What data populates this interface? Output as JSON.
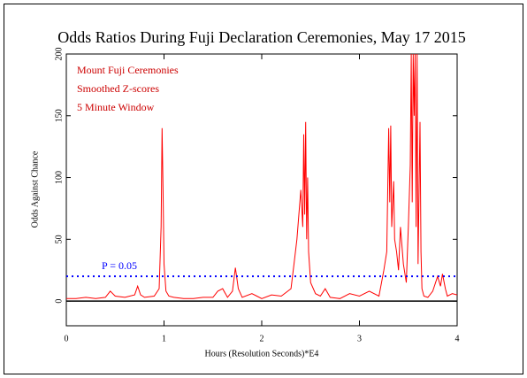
{
  "chart_data": {
    "type": "line",
    "title": "Odds Ratios During Fuji Declaration Ceremonies, May 17 2015",
    "xlabel": "Hours (Resolution Seconds)*E4",
    "ylabel": "Odds Against Chance",
    "annotations": [
      "Mount Fuji Ceremonies",
      "Smoothed Z-scores",
      "5 Minute Window"
    ],
    "annotation_color": "#cc0000",
    "reference_line": {
      "value": 20,
      "label": "P = 0.05",
      "color": "#0000ff"
    },
    "xlim": [
      0,
      4
    ],
    "xticks": [
      0,
      1,
      2,
      3,
      4
    ],
    "ylim": [
      -20,
      200
    ],
    "yticks": [
      0,
      50,
      100,
      150,
      200
    ],
    "series": [
      {
        "name": "Mount Fuji Ceremonies",
        "color": "#ff0000",
        "x": [
          0,
          0.1,
          0.2,
          0.3,
          0.4,
          0.45,
          0.5,
          0.6,
          0.7,
          0.73,
          0.76,
          0.8,
          0.9,
          0.95,
          0.97,
          0.98,
          0.99,
          1.0,
          1.02,
          1.05,
          1.1,
          1.2,
          1.3,
          1.4,
          1.5,
          1.55,
          1.6,
          1.65,
          1.7,
          1.73,
          1.76,
          1.8,
          1.9,
          1.95,
          2.0,
          2.1,
          2.2,
          2.3,
          2.33,
          2.36,
          2.4,
          2.42,
          2.43,
          2.44,
          2.45,
          2.46,
          2.47,
          2.48,
          2.5,
          2.55,
          2.6,
          2.65,
          2.7,
          2.8,
          2.9,
          3.0,
          3.1,
          3.2,
          3.25,
          3.28,
          3.3,
          3.31,
          3.32,
          3.33,
          3.35,
          3.36,
          3.38,
          3.4,
          3.42,
          3.45,
          3.48,
          3.5,
          3.52,
          3.53,
          3.54,
          3.55,
          3.56,
          3.57,
          3.58,
          3.59,
          3.6,
          3.62,
          3.63,
          3.64,
          3.66,
          3.7,
          3.75,
          3.8,
          3.83,
          3.85,
          3.88,
          3.9,
          3.95,
          4.0
        ],
        "values": [
          2,
          2,
          3,
          2,
          3,
          8,
          4,
          3,
          5,
          12,
          5,
          3,
          4,
          10,
          60,
          140,
          90,
          30,
          8,
          4,
          3,
          2,
          2,
          3,
          3,
          8,
          10,
          3,
          8,
          27,
          10,
          3,
          6,
          4,
          2,
          5,
          4,
          10,
          30,
          50,
          90,
          60,
          135,
          70,
          145,
          50,
          100,
          40,
          15,
          6,
          4,
          10,
          3,
          2,
          6,
          4,
          8,
          4,
          25,
          40,
          140,
          80,
          142,
          60,
          97,
          50,
          40,
          25,
          60,
          30,
          15,
          60,
          110,
          200,
          80,
          200,
          150,
          200,
          60,
          200,
          30,
          145,
          40,
          10,
          4,
          3,
          8,
          20,
          12,
          22,
          10,
          4,
          6,
          5
        ]
      }
    ]
  }
}
